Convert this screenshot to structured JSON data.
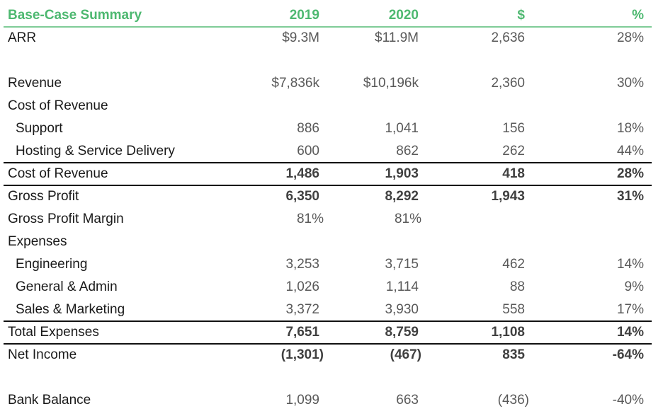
{
  "header": {
    "title": "Base-Case Summary",
    "col_2019": "2019",
    "col_2020": "2020",
    "col_dollar": "$",
    "col_pct": "%"
  },
  "rows": [
    {
      "label": "ARR",
      "v2019": "$9.3M",
      "v2020": "$11.9M",
      "dollar": "2,636",
      "pct": "28%"
    },
    {
      "label": "Revenue",
      "v2019": "$7,836k",
      "v2020": "$10,196k",
      "dollar": "2,360",
      "pct": "30%"
    },
    {
      "label": "Cost of Revenue",
      "v2019": "",
      "v2020": "",
      "dollar": "",
      "pct": ""
    },
    {
      "label": "Support",
      "v2019": "886",
      "v2020": "1,041",
      "dollar": "156",
      "pct": "18%"
    },
    {
      "label": "Hosting & Service Delivery",
      "v2019": "600",
      "v2020": "862",
      "dollar": "262",
      "pct": "44%"
    },
    {
      "label": "Cost of Revenue",
      "v2019": "1,486",
      "v2020": "1,903",
      "dollar": "418",
      "pct": "28%"
    },
    {
      "label": "Gross Profit",
      "v2019": "6,350",
      "v2020": "8,292",
      "dollar": "1,943",
      "pct": "31%"
    },
    {
      "label": "Gross Profit Margin",
      "v2019": "81%",
      "v2020": "81%",
      "dollar": "",
      "pct": ""
    },
    {
      "label": "Expenses",
      "v2019": "",
      "v2020": "",
      "dollar": "",
      "pct": ""
    },
    {
      "label": "Engineering",
      "v2019": "3,253",
      "v2020": "3,715",
      "dollar": "462",
      "pct": "14%"
    },
    {
      "label": "General & Admin",
      "v2019": "1,026",
      "v2020": "1,114",
      "dollar": "88",
      "pct": "9%"
    },
    {
      "label": "Sales & Marketing",
      "v2019": "3,372",
      "v2020": "3,930",
      "dollar": "558",
      "pct": "17%"
    },
    {
      "label": "Total Expenses",
      "v2019": "7,651",
      "v2020": "8,759",
      "dollar": "1,108",
      "pct": "14%"
    },
    {
      "label": "Net Income",
      "v2019": "(1,301)",
      "v2020": "(467)",
      "dollar": "835",
      "pct": "-64%"
    },
    {
      "label": "Bank Balance",
      "v2019": "1,099",
      "v2020": "663",
      "dollar": "(436)",
      "pct": "-40%"
    }
  ]
}
